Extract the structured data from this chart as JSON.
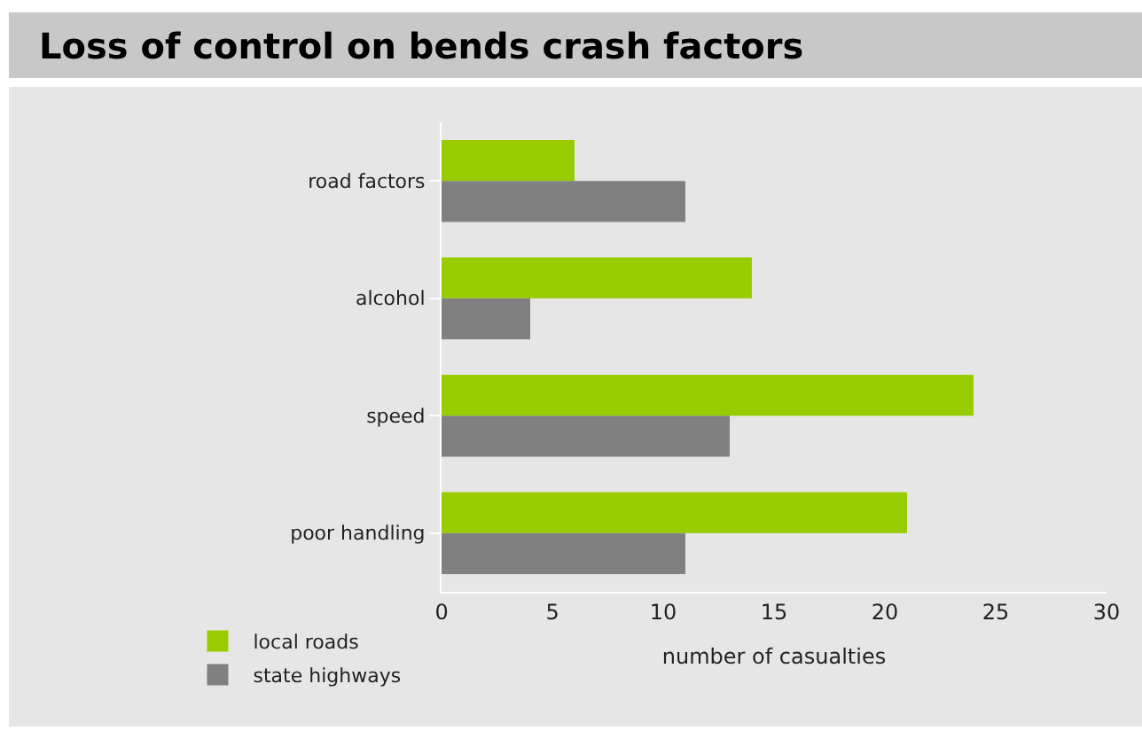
{
  "chart_data": {
    "type": "bar",
    "title": "Loss of control on bends crash factors",
    "orientation": "horizontal",
    "xlabel": "number of casualties",
    "categories": [
      "road factors",
      "alcohol",
      "speed",
      "poor handling"
    ],
    "series": [
      {
        "name": "local roads",
        "color": "#99cc00",
        "values": [
          6,
          14,
          24,
          21
        ]
      },
      {
        "name": "state highways",
        "color": "#808080",
        "values": [
          11,
          4,
          13,
          11
        ]
      }
    ],
    "xlim": [
      0,
      30
    ],
    "xticks": [
      0,
      5,
      10,
      15,
      20,
      25,
      30
    ],
    "grid": false,
    "legend": "bottom left"
  }
}
